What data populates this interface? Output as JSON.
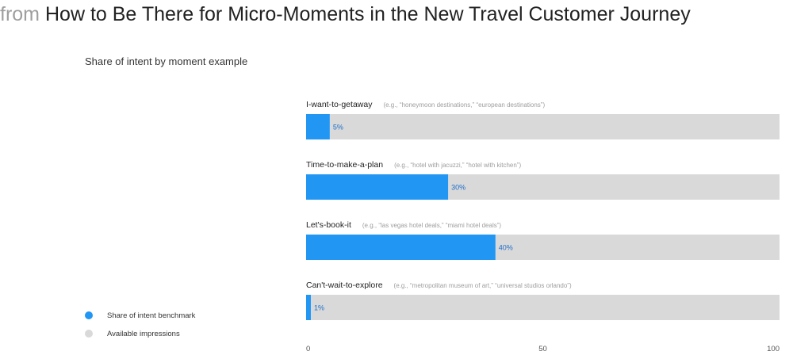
{
  "header": {
    "prefix": "from",
    "title": "How to Be There for Micro-Moments in the New Travel Customer Journey"
  },
  "colors": {
    "share": "#2196f3",
    "available": "#d9d9d9",
    "label_blue": "#1e6ec8",
    "example_gray": "#9e9e9e"
  },
  "chart_data": {
    "type": "bar",
    "orientation": "horizontal",
    "stacked": true,
    "title": "Share of intent by moment example",
    "categories": [
      "I-want-to-getaway",
      "Time-to-make-a-plan",
      "Let's-book-it",
      "Can't-wait-to-explore"
    ],
    "examples": [
      "(e.g., “honeymoon destinations,” “european destinations”)",
      "(e.g., “hotel with jacuzzi,” “hotel with kitchen”)",
      "(e.g., “las vegas hotel deals,” “miami hotel deals”)",
      "(e.g., “metropolitan museum of art,” “universal studios orlando”)"
    ],
    "series": [
      {
        "name": "Share of intent benchmark",
        "values": [
          5,
          30,
          40,
          1
        ],
        "color": "#2196f3"
      },
      {
        "name": "Available impressions",
        "values": [
          95,
          70,
          60,
          99
        ],
        "color": "#d9d9d9"
      }
    ],
    "data_labels": [
      "5%",
      "30%",
      "40%",
      "1%"
    ],
    "xlim": [
      0,
      100
    ],
    "xticks": [
      0,
      50,
      100
    ],
    "grid": false,
    "legend": "bottom-left"
  }
}
